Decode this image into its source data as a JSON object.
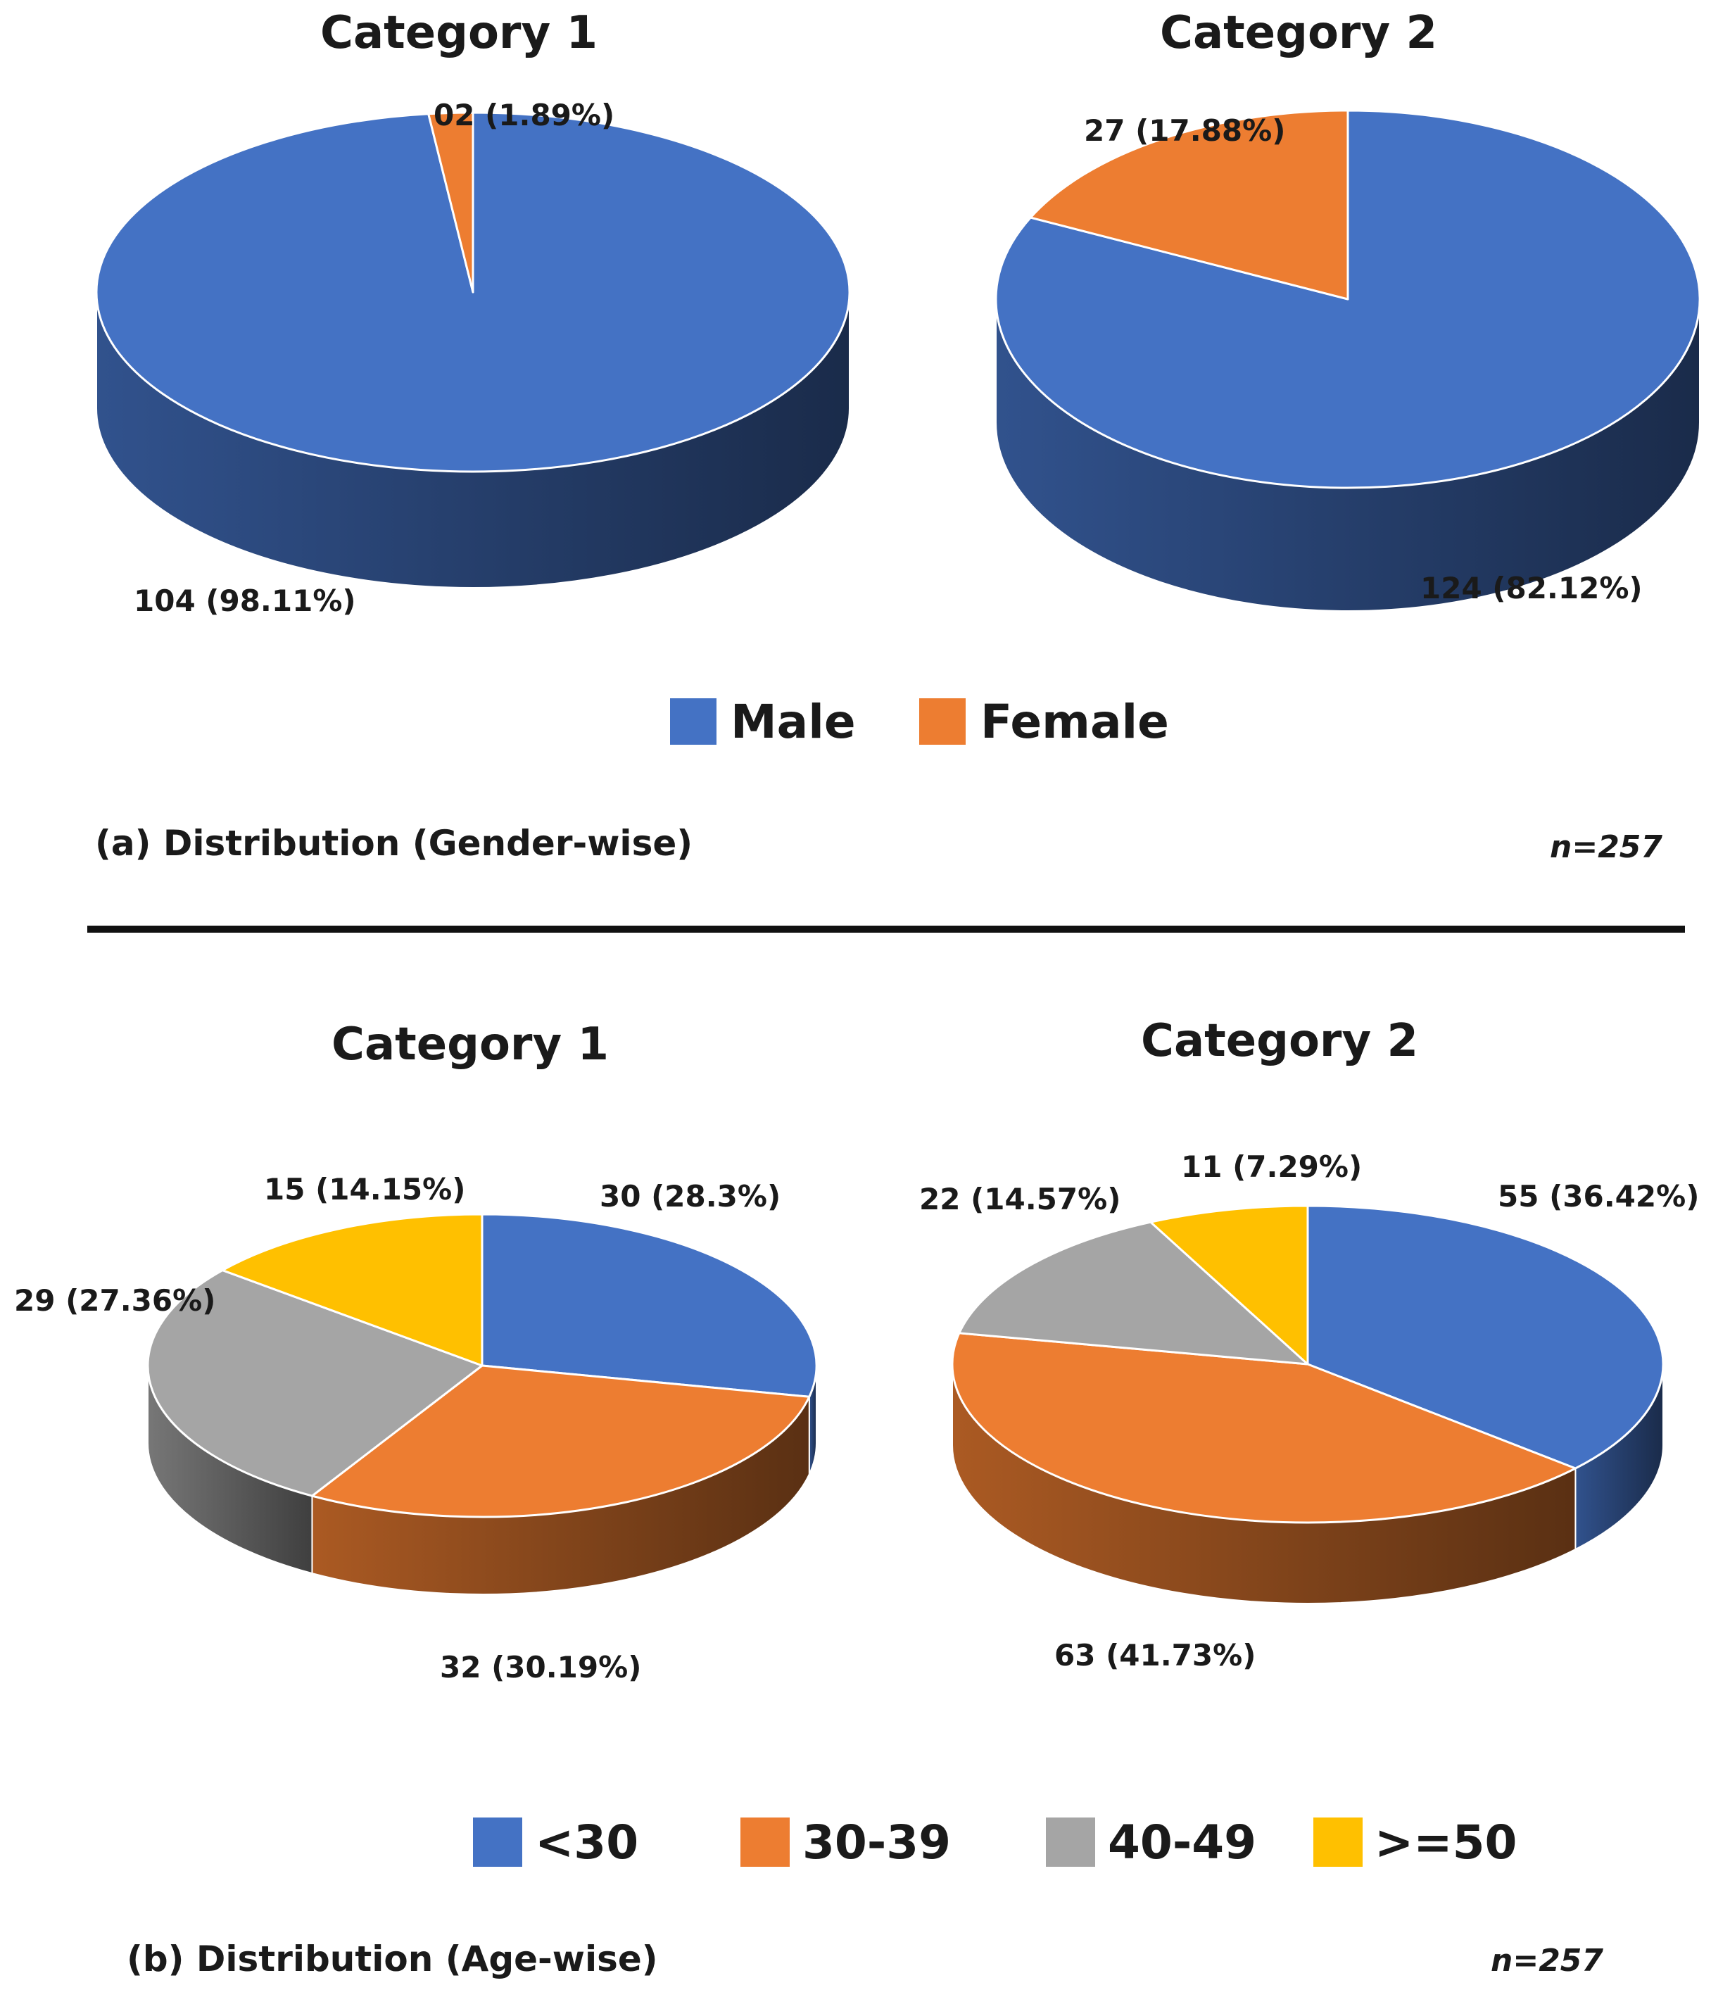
{
  "chart_data": [
    {
      "type": "pie",
      "panel": "a",
      "title": "Category 1",
      "categories": [
        "Male",
        "Female"
      ],
      "values": [
        104,
        2
      ],
      "labels": [
        "104 (98.11%)",
        "02 (1.89%)"
      ],
      "colors": [
        "#4472C4",
        "#ED7D31"
      ]
    },
    {
      "type": "pie",
      "panel": "a",
      "title": "Category 2",
      "categories": [
        "Male",
        "Female"
      ],
      "values": [
        124,
        27
      ],
      "labels": [
        "124 (82.12%)",
        "27 (17.88%)"
      ],
      "colors": [
        "#4472C4",
        "#ED7D31"
      ]
    },
    {
      "type": "pie",
      "panel": "b",
      "title": "Category 1",
      "categories": [
        "<30",
        "30-39",
        "40-49",
        ">=50"
      ],
      "values": [
        30,
        32,
        29,
        15
      ],
      "labels": [
        "30 (28.3%)",
        "32 (30.19%)",
        "29 (27.36%)",
        "15 (14.15%)"
      ],
      "colors": [
        "#4472C4",
        "#ED7D31",
        "#A5A5A5",
        "#FFC000"
      ]
    },
    {
      "type": "pie",
      "panel": "b",
      "title": "Category 2",
      "categories": [
        "<30",
        "30-39",
        "40-49",
        ">=50"
      ],
      "values": [
        55,
        63,
        22,
        11
      ],
      "labels": [
        "55 (36.42%)",
        "63 (41.73%)",
        "22 (14.57%)",
        "11 (7.29%)"
      ],
      "colors": [
        "#4472C4",
        "#ED7D31",
        "#A5A5A5",
        "#FFC000"
      ]
    }
  ],
  "legend_a": [
    {
      "label": "Male",
      "color": "#4472C4"
    },
    {
      "label": "Female",
      "color": "#ED7D31"
    }
  ],
  "legend_b": [
    {
      "label": "<30",
      "color": "#4472C4"
    },
    {
      "label": "30-39",
      "color": "#ED7D31"
    },
    {
      "label": "40-49",
      "color": "#A5A5A5"
    },
    {
      "label": ">=50",
      "color": "#FFC000"
    }
  ],
  "caption_a": "(a) Distribution (Gender-wise)",
  "caption_b": "(b) Distribution (Age-wise)",
  "n_a": "n=257",
  "n_b": "n=257"
}
